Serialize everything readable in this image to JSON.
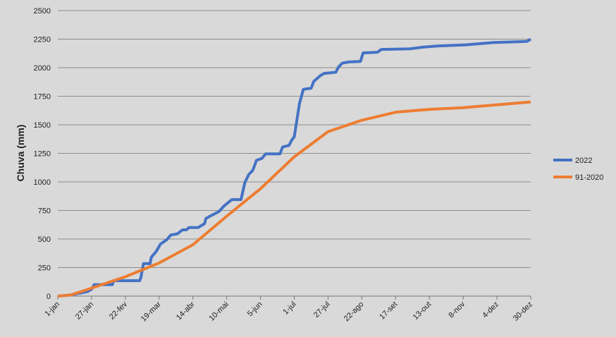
{
  "chart_data": {
    "type": "line",
    "y_label": "Chuva (mm)",
    "xlim": [
      0,
      364
    ],
    "xticks": [
      {
        "value": 0,
        "label": "1-jan"
      },
      {
        "value": 26,
        "label": "27-jan"
      },
      {
        "value": 52,
        "label": "22-fev"
      },
      {
        "value": 78,
        "label": "19-mar"
      },
      {
        "value": 104,
        "label": "14-abr"
      },
      {
        "value": 130,
        "label": "10-mai"
      },
      {
        "value": 156,
        "label": "5-jun"
      },
      {
        "value": 182,
        "label": "1-jul"
      },
      {
        "value": 208,
        "label": "27-jul"
      },
      {
        "value": 234,
        "label": "22-ago"
      },
      {
        "value": 260,
        "label": "17-set"
      },
      {
        "value": 286,
        "label": "13-out"
      },
      {
        "value": 312,
        "label": "8-nov"
      },
      {
        "value": 338,
        "label": "4-dez"
      },
      {
        "value": 364,
        "label": "30-dez"
      }
    ],
    "ylim": [
      0,
      2500
    ],
    "yticks": [
      0,
      250,
      500,
      750,
      1000,
      1250,
      1500,
      1750,
      2000,
      2250,
      2500
    ],
    "grid": true,
    "legend": "right",
    "series": [
      {
        "name": "2022",
        "color": "#4472c4",
        "x": [
          0,
          10,
          23,
          26,
          28,
          42,
          43,
          63,
          64,
          66,
          71,
          72,
          76,
          79,
          84,
          87,
          92,
          96,
          99,
          101,
          108,
          113,
          114,
          118,
          124,
          128,
          134,
          141,
          144,
          147,
          150,
          153,
          157,
          160,
          171,
          173,
          178,
          180,
          182,
          186,
          189,
          195,
          197,
          202,
          205,
          214,
          216,
          219,
          224,
          233,
          235,
          246,
          249,
          271,
          281,
          292,
          314,
          335,
          361,
          364
        ],
        "values": [
          0,
          10,
          40,
          60,
          100,
          100,
          135,
          135,
          165,
          285,
          285,
          340,
          395,
          455,
          495,
          535,
          545,
          580,
          580,
          600,
          600,
          635,
          680,
          705,
          740,
          790,
          845,
          845,
          995,
          1065,
          1100,
          1190,
          1205,
          1245,
          1245,
          1305,
          1320,
          1365,
          1395,
          1685,
          1810,
          1820,
          1880,
          1930,
          1950,
          1960,
          2005,
          2040,
          2050,
          2055,
          2130,
          2135,
          2160,
          2165,
          2180,
          2190,
          2200,
          2220,
          2230,
          2250
        ]
      },
      {
        "name": "91-2020",
        "color": "#ed7d31",
        "x": [
          0,
          10,
          26,
          52,
          78,
          104,
          130,
          156,
          182,
          208,
          234,
          260,
          286,
          312,
          338,
          364
        ],
        "values": [
          0,
          10,
          70,
          170,
          290,
          450,
          700,
          940,
          1220,
          1440,
          1540,
          1610,
          1635,
          1650,
          1675,
          1700
        ]
      }
    ]
  }
}
